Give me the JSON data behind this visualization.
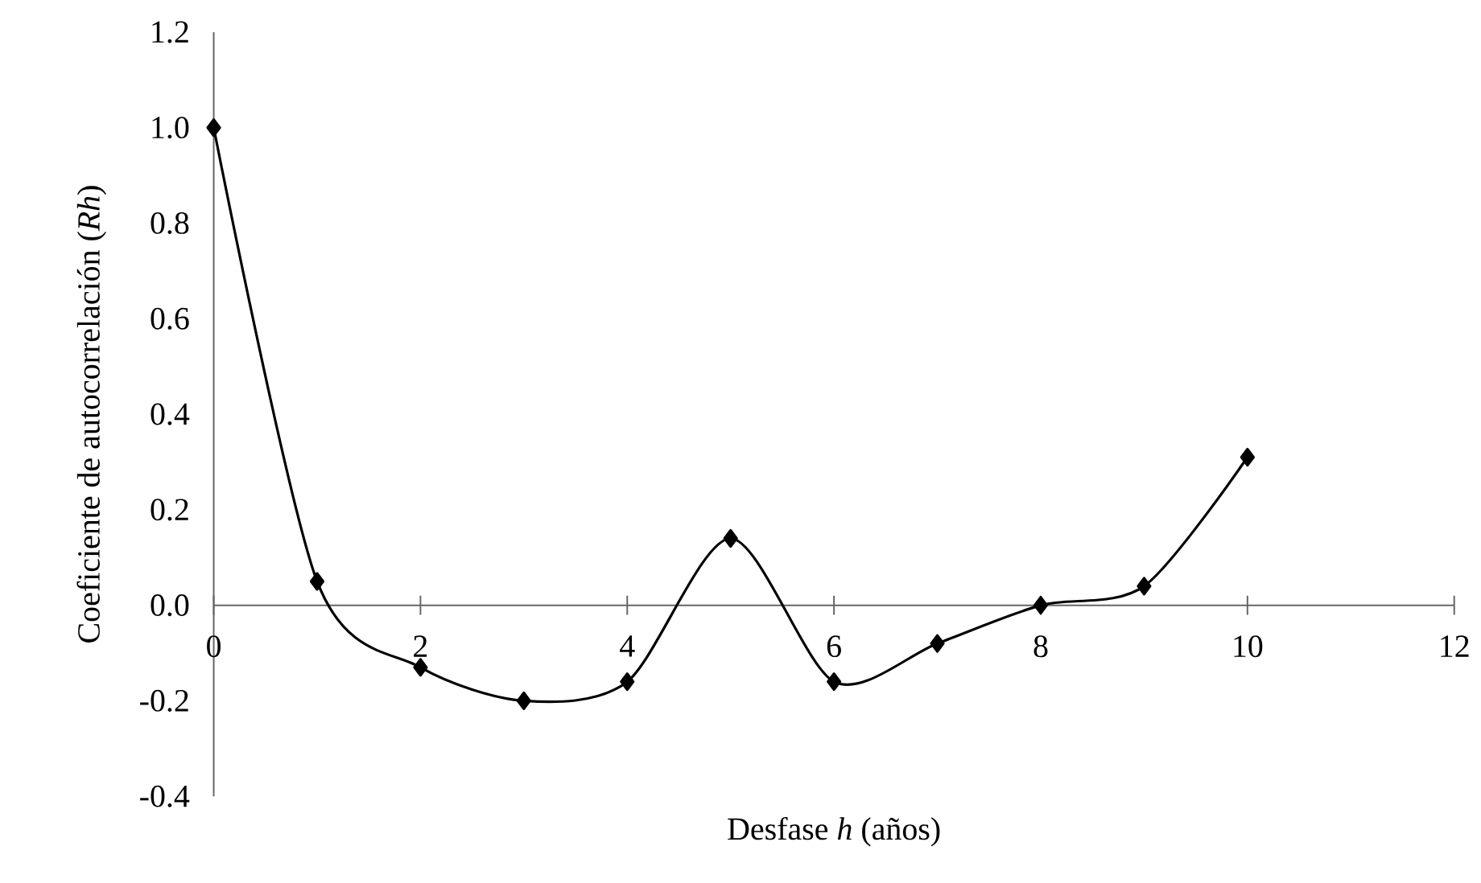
{
  "chart_data": {
    "type": "line",
    "xlabel": "Desfase *h* (años)",
    "ylabel": "Coeficiente de autocorrelación (*Rh*)",
    "x": [
      0,
      1,
      2,
      3,
      4,
      5,
      6,
      7,
      8,
      9,
      10
    ],
    "series": [
      {
        "color": "#000000",
        "values": [
          1.0,
          0.05,
          -0.13,
          -0.2,
          -0.16,
          0.14,
          -0.16,
          -0.08,
          0.0,
          0.04,
          0.31
        ]
      }
    ],
    "xlim": [
      0,
      12
    ],
    "ylim": [
      -0.4,
      1.2
    ],
    "xticks": [
      0,
      2,
      4,
      6,
      8,
      10,
      12
    ],
    "yticks": [
      -0.4,
      -0.2,
      {
        "value": 0,
        "label": "0.0"
      },
      0.2,
      0.4,
      0.6,
      0.8,
      {
        "value": 1,
        "label": "1.0"
      },
      1.2
    ],
    "marker": "diamond",
    "line_style": "solid",
    "grid": false
  }
}
